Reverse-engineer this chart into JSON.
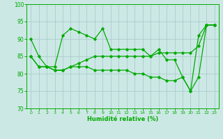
{
  "xlabel": "Humidité relative (%)",
  "bg_color": "#cce8e5",
  "grid_color": "#aacccc",
  "line_color": "#00aa00",
  "xlim": [
    -0.5,
    23.5
  ],
  "ylim": [
    70,
    100
  ],
  "yticks": [
    70,
    75,
    80,
    85,
    90,
    95,
    100
  ],
  "xticks": [
    0,
    1,
    2,
    3,
    4,
    5,
    6,
    7,
    8,
    9,
    10,
    11,
    12,
    13,
    14,
    15,
    16,
    17,
    18,
    19,
    20,
    21,
    22,
    23
  ],
  "series": [
    [
      90,
      85,
      82,
      82,
      91,
      93,
      92,
      91,
      90,
      93,
      87,
      87,
      87,
      87,
      87,
      85,
      87,
      84,
      84,
      79,
      75,
      91,
      94,
      94
    ],
    [
      85,
      82,
      82,
      81,
      81,
      82,
      83,
      84,
      85,
      85,
      85,
      85,
      85,
      85,
      85,
      85,
      86,
      86,
      86,
      86,
      86,
      88,
      94,
      94
    ],
    [
      85,
      82,
      82,
      81,
      81,
      82,
      82,
      82,
      81,
      81,
      81,
      81,
      81,
      80,
      80,
      79,
      79,
      78,
      78,
      79,
      75,
      79,
      94,
      94
    ]
  ]
}
